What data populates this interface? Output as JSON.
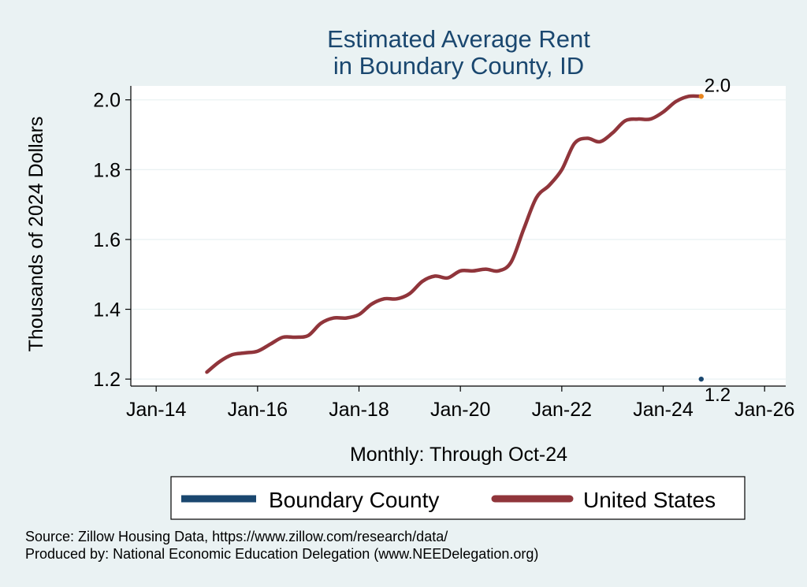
{
  "chart_data": {
    "type": "line",
    "title": [
      "Estimated Average Rent",
      "in Boundary County, ID"
    ],
    "ylabel": "Thousands of 2024 Dollars",
    "xlabel": "Monthly: Through Oct-24",
    "ylim": [
      1.18,
      2.04
    ],
    "yticks": [
      1.2,
      1.4,
      1.6,
      1.8,
      2.0
    ],
    "ytick_labels": [
      "1.2",
      "1.4",
      "1.6",
      "1.8",
      "2.0"
    ],
    "xlim": [
      "2013-07",
      "2026-06"
    ],
    "xticks": [
      "2014-01",
      "2016-01",
      "2018-01",
      "2020-01",
      "2022-01",
      "2024-01",
      "2026-01"
    ],
    "xtick_labels": [
      "Jan-14",
      "Jan-16",
      "Jan-18",
      "Jan-20",
      "Jan-22",
      "Jan-24",
      "Jan-26"
    ],
    "series": [
      {
        "name": "Boundary County",
        "color": "#1a476f",
        "x": [
          "2024-10"
        ],
        "values": [
          1.2
        ]
      },
      {
        "name": "United States",
        "color": "#90353b",
        "x": [
          "2015-01",
          "2015-04",
          "2015-07",
          "2015-10",
          "2016-01",
          "2016-04",
          "2016-07",
          "2016-10",
          "2017-01",
          "2017-04",
          "2017-07",
          "2017-10",
          "2018-01",
          "2018-04",
          "2018-07",
          "2018-10",
          "2019-01",
          "2019-04",
          "2019-07",
          "2019-10",
          "2020-01",
          "2020-04",
          "2020-07",
          "2020-10",
          "2021-01",
          "2021-04",
          "2021-07",
          "2021-10",
          "2022-01",
          "2022-04",
          "2022-07",
          "2022-10",
          "2023-01",
          "2023-04",
          "2023-07",
          "2023-10",
          "2024-01",
          "2024-04",
          "2024-07",
          "2024-10"
        ],
        "values": [
          1.22,
          1.25,
          1.27,
          1.275,
          1.28,
          1.3,
          1.32,
          1.32,
          1.325,
          1.36,
          1.375,
          1.375,
          1.385,
          1.415,
          1.43,
          1.43,
          1.445,
          1.48,
          1.495,
          1.49,
          1.51,
          1.51,
          1.515,
          1.51,
          1.535,
          1.63,
          1.72,
          1.755,
          1.8,
          1.875,
          1.89,
          1.88,
          1.905,
          1.94,
          1.945,
          1.945,
          1.965,
          1.995,
          2.01,
          2.01
        ]
      }
    ],
    "end_labels": [
      {
        "series": "United States",
        "text": "2.0",
        "marker_color": "#e8851e"
      },
      {
        "series": "Boundary County",
        "text": "1.2",
        "marker_color": "#1a476f"
      }
    ],
    "legend": {
      "position": "bottom",
      "items": [
        "Boundary County",
        "United States"
      ]
    },
    "grid": true,
    "source": [
      "Source: Zillow Housing Data, https://www.zillow.com/research/data/",
      "Produced by: National Economic Education Delegation (www.NEEDelegation.org)"
    ]
  }
}
